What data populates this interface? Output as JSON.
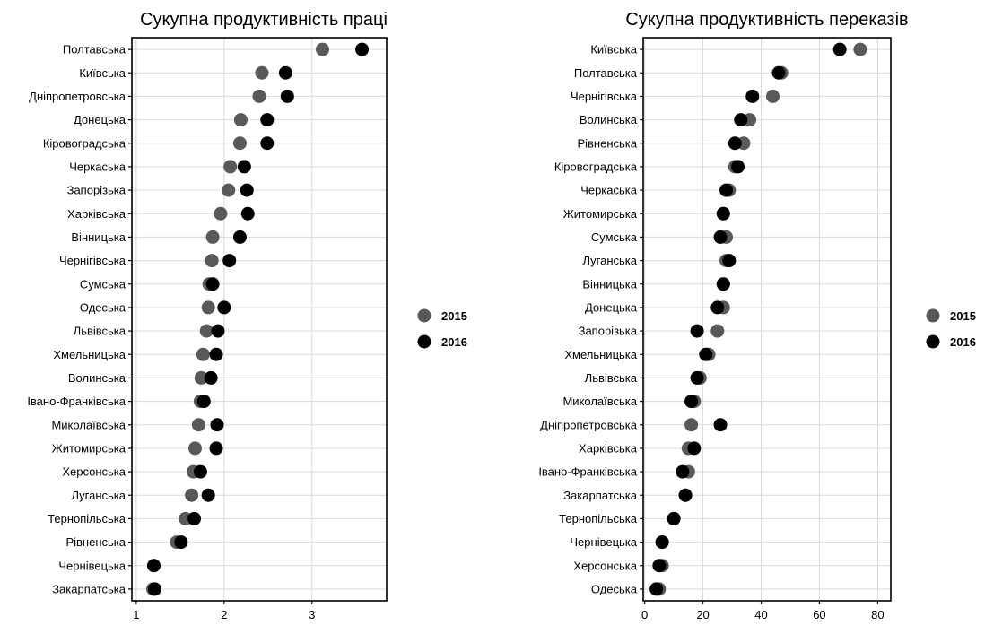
{
  "chart_data": [
    {
      "type": "scatter",
      "title": "Сукупна продуктивність праці",
      "xlabel": "",
      "ylabel": "",
      "xlim": [
        0.95,
        3.85
      ],
      "xticks": [
        1,
        2,
        3
      ],
      "grid": true,
      "legend_position": "right",
      "categories": [
        "Полтавська",
        "Київська",
        "Дніпропетровська",
        "Донецька",
        "Кіровоградська",
        "Черкаська",
        "Запорізька",
        "Харківська",
        "Вінницька",
        "Чернігівська",
        "Сумська",
        "Одеська",
        "Львівська",
        "Хмельницька",
        "Волинська",
        "Івано-Франківська",
        "Миколаївська",
        "Житомирська",
        "Херсонська",
        "Луганська",
        "Тернопільська",
        "Рівненська",
        "Чернівецька",
        "Закарпатська"
      ],
      "series": [
        {
          "name": "2015",
          "color": "#595959",
          "values": [
            3.12,
            2.43,
            2.4,
            2.19,
            2.18,
            2.07,
            2.05,
            1.96,
            1.87,
            1.86,
            1.83,
            1.82,
            1.8,
            1.76,
            1.74,
            1.73,
            1.71,
            1.67,
            1.65,
            1.63,
            1.56,
            1.46,
            1.2,
            1.19
          ]
        },
        {
          "name": "2016",
          "color": "#000000",
          "values": [
            3.57,
            2.7,
            2.72,
            2.49,
            2.49,
            2.23,
            2.26,
            2.27,
            2.18,
            2.06,
            1.87,
            2.0,
            1.93,
            1.91,
            1.85,
            1.77,
            1.92,
            1.91,
            1.73,
            1.82,
            1.66,
            1.51,
            1.2,
            1.21
          ]
        }
      ]
    },
    {
      "type": "scatter",
      "title": "Сукупна продуктивність переказів",
      "xlabel": "",
      "ylabel": "",
      "xlim": [
        -0.5,
        84.5
      ],
      "xticks": [
        0,
        20,
        40,
        60,
        80
      ],
      "grid": true,
      "legend_position": "right",
      "categories": [
        "Київська",
        "Полтавська",
        "Чернігівська",
        "Волинська",
        "Рівненська",
        "Кіровоградська",
        "Черкаська",
        "Житомирська",
        "Сумська",
        "Луганська",
        "Вінницька",
        "Донецька",
        "Запорізька",
        "Хмельницька",
        "Львівська",
        "Миколаївська",
        "Дніпропетровська",
        "Харківська",
        "Івано-Франківська",
        "Закарпатська",
        "Тернопільська",
        "Чернівецька",
        "Херсонська",
        "Одеська"
      ],
      "series": [
        {
          "name": "2015",
          "color": "#595959",
          "values": [
            74,
            47,
            44,
            36,
            34,
            31,
            29,
            27,
            28,
            28,
            27,
            27,
            25,
            22,
            19,
            17,
            16,
            15,
            15,
            14,
            10,
            6,
            6,
            5
          ]
        },
        {
          "name": "2016",
          "color": "#000000",
          "values": [
            67,
            46,
            37,
            33,
            31,
            32,
            28,
            27,
            26,
            29,
            27,
            25,
            18,
            21,
            18,
            16,
            26,
            17,
            13,
            14,
            10,
            6,
            5,
            4
          ]
        }
      ]
    }
  ]
}
